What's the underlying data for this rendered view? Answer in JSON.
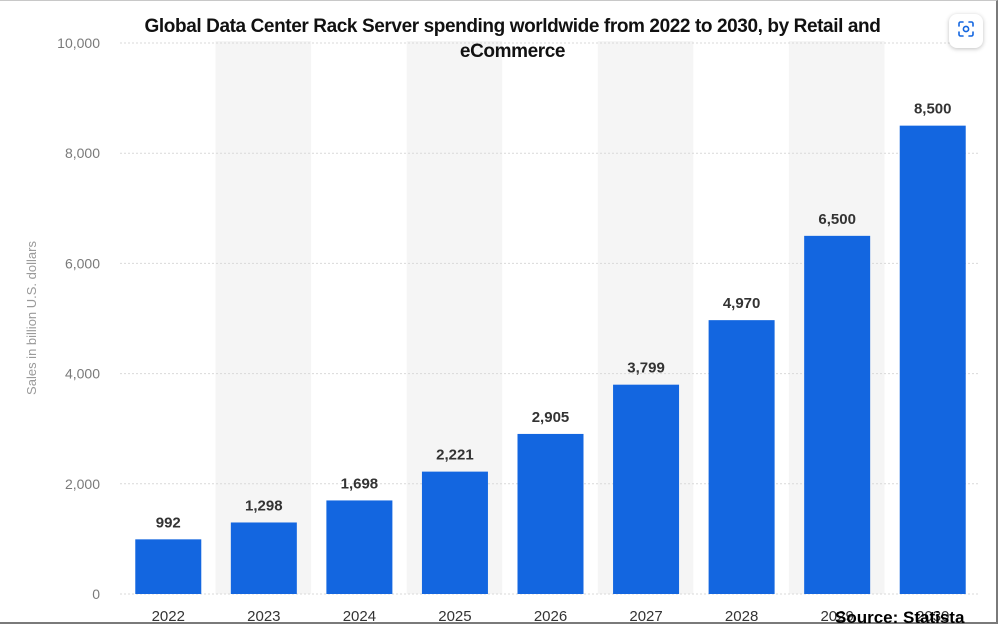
{
  "chart_data": {
    "type": "bar",
    "title": "Global Data Center Rack Server spending worldwide from 2022 to 2030, by Retail and eCommerce",
    "ylabel": "Sales in billion U.S. dollars",
    "xlabel": "",
    "categories": [
      "2022",
      "2023",
      "2024",
      "2025",
      "2026",
      "2027",
      "2028",
      "2029",
      "2030"
    ],
    "values": [
      992,
      1298,
      1698,
      2221,
      2905,
      3799,
      4970,
      6500,
      8500
    ],
    "value_labels": [
      "992",
      "1,298",
      "1,698",
      "2,221",
      "2,905",
      "3,799",
      "4,970",
      "6,500",
      "8,500"
    ],
    "ylim": [
      0,
      10000
    ],
    "yticks": [
      0,
      2000,
      4000,
      6000,
      8000,
      10000
    ],
    "ytick_labels": [
      "0",
      "2,000",
      "4,000",
      "6,000",
      "8,000",
      "10,000"
    ],
    "grid": true,
    "bar_color": "#1366e0",
    "band_color": "#f5f5f5"
  },
  "source_text": "Source: Statista",
  "scan_icon_name": "scan-icon"
}
